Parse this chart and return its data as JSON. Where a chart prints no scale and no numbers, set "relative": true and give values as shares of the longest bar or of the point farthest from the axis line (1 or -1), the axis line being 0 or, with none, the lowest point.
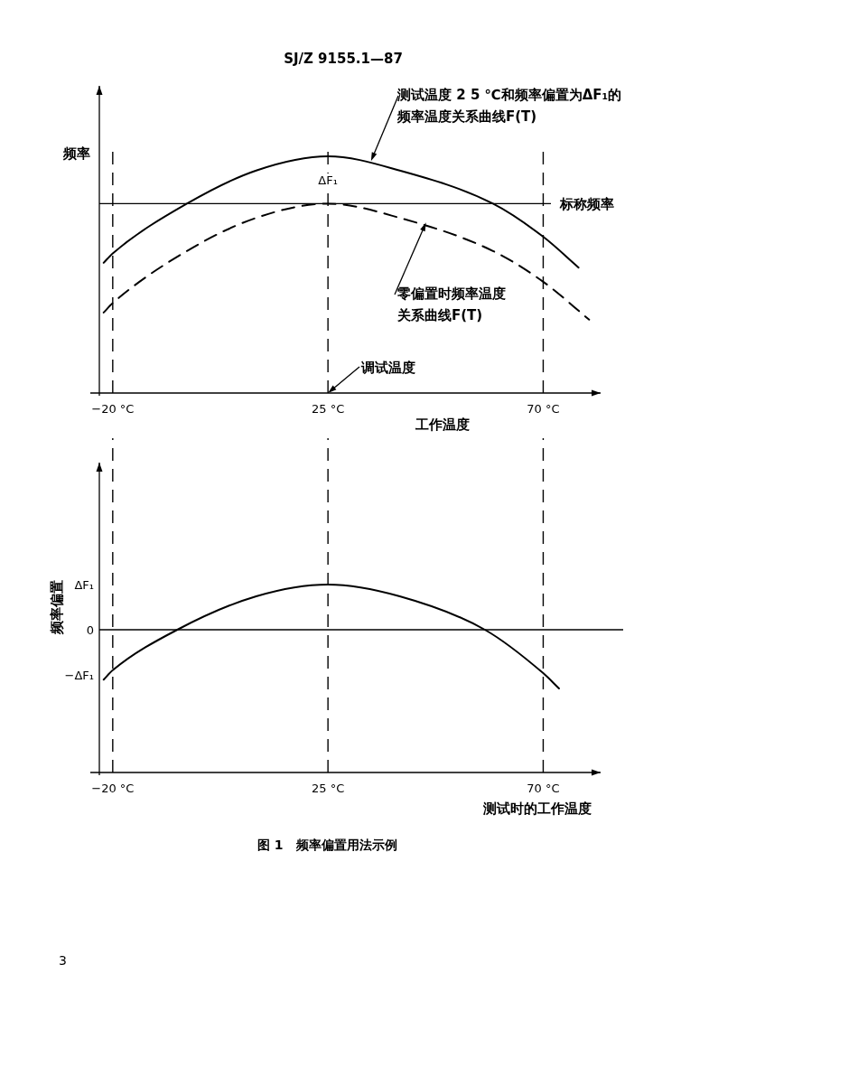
{
  "chart_data": [
    {
      "type": "line",
      "relative": true,
      "xlabel": "工作温度",
      "ylabel": "频率",
      "xlim": [
        -22.8,
        82
      ],
      "xticks": [
        {
          "value": -20,
          "label": "−20 °C"
        },
        {
          "value": 25,
          "label": "25 °C"
        },
        {
          "value": 70,
          "label": "70 °C"
        }
      ],
      "tick_labels": "x",
      "grid": false,
      "series": [
        {
          "color": "#000000",
          "line_style": "solid",
          "x": [
            -21.9,
            -20,
            -4.5,
            10,
            25,
            40,
            59.5,
            70,
            77.4
          ],
          "values": [
            0.55,
            0.59,
            0.8,
            0.94,
            1.0,
            0.94,
            0.8,
            0.66,
            0.53
          ]
        },
        {
          "color": "#000000",
          "line_style": "dashed",
          "x": [
            -21.9,
            -20,
            -4.5,
            10,
            25,
            40,
            59.5,
            70,
            79.6
          ],
          "values": [
            0.34,
            0.38,
            0.6,
            0.74,
            0.8,
            0.74,
            0.6,
            0.47,
            0.31
          ]
        }
      ],
      "ref_lines": [
        {
          "axis": "y",
          "value": 0.8,
          "label": "标称频率",
          "line_style": "solid",
          "color": "#000000"
        },
        {
          "axis": "x",
          "value": -20,
          "line_style": "dashed",
          "color": "#000000"
        },
        {
          "axis": "x",
          "value": 25,
          "line_style": "dashed",
          "color": "#000000"
        },
        {
          "axis": "x",
          "value": 70,
          "line_style": "dashed",
          "color": "#000000"
        }
      ],
      "annotations": [
        "SJ/Z 9155.1—87",
        {
          "text": "测试温度 2 5 ℃和频率偏置为ΔF₁的频率温度关系曲线F(T)",
          "x": 34,
          "y": 0.98
        },
        {
          "text": "零偏置时频率温度关系曲线F(T)",
          "x": 45.5,
          "y": 0.72
        },
        {
          "text": "调试温度",
          "x": 25,
          "y": 0
        },
        {
          "text": "ΔF₁",
          "x": 25,
          "y": 0.9
        }
      ]
    },
    {
      "type": "line",
      "relative": true,
      "xlabel": "测试时的工作温度",
      "ylabel": "频率偏置",
      "xlim": [
        -22.8,
        82
      ],
      "xticks": [
        {
          "value": -20,
          "label": "−20 °C"
        },
        {
          "value": 25,
          "label": "25 °C"
        },
        {
          "value": 70,
          "label": "70 °C"
        }
      ],
      "tick_labels": "x",
      "grid": false,
      "series": [
        {
          "color": "#000000",
          "line_style": "solid",
          "x": [
            -21.9,
            -20,
            -6.5,
            10,
            25,
            40,
            57.8,
            70,
            73.3
          ],
          "values": [
            -0.85,
            -0.69,
            0,
            0.57,
            0.77,
            0.57,
            0,
            -0.74,
            -1
          ]
        }
      ],
      "ref_lines": [
        {
          "axis": "y",
          "value": 0,
          "line_style": "solid",
          "color": "#000000"
        },
        {
          "axis": "x",
          "value": -20,
          "line_style": "dashed",
          "color": "#000000"
        },
        {
          "axis": "x",
          "value": 25,
          "line_style": "dashed",
          "color": "#000000"
        },
        {
          "axis": "x",
          "value": 70,
          "line_style": "dashed",
          "color": "#000000"
        }
      ],
      "annotations": [
        "ΔF₁",
        "0",
        "−ΔF₁",
        "图 1　频率偏置用法示例",
        "3"
      ]
    }
  ]
}
